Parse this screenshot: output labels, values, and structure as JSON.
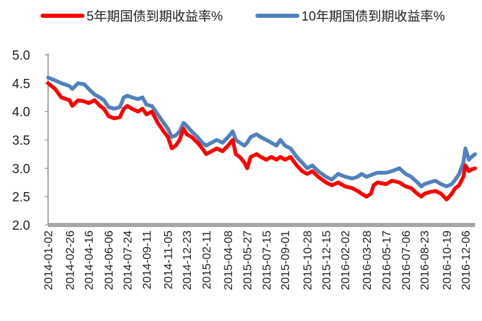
{
  "chart_data": {
    "type": "line",
    "title": "",
    "xlabel": "",
    "ylabel": "",
    "ylim": [
      2.0,
      5.0
    ],
    "yticks": [
      "5.0",
      "4.5",
      "4.0",
      "3.5",
      "3.0",
      "2.5",
      "2.0"
    ],
    "legend_position": "top",
    "grid": false,
    "x_tick_labels": [
      "2014-01-02",
      "2014-02-26",
      "2014-04-16",
      "2014-06-06",
      "2014-07-24",
      "2014-09-11",
      "2014-11-05",
      "2014-12-23",
      "2015-02-11",
      "2015-04-08",
      "2015-05-27",
      "2015-07-15",
      "2015-09-01",
      "2015-10-28",
      "2015-12-15",
      "2016-02-02",
      "2016-03-28",
      "2016-05-17",
      "2016-07-06",
      "2016-08-23",
      "2016-10-19",
      "2016-12-06"
    ],
    "x_range": [
      "2014-01-02",
      "2016-12-31"
    ],
    "series": [
      {
        "name": "5年期国债到期收益率%",
        "color": "#ff0000",
        "points": [
          [
            "2014-01-02",
            4.5
          ],
          [
            "2014-01-20",
            4.4
          ],
          [
            "2014-02-05",
            4.25
          ],
          [
            "2014-02-26",
            4.2
          ],
          [
            "2014-03-05",
            4.1
          ],
          [
            "2014-03-20",
            4.2
          ],
          [
            "2014-04-05",
            4.18
          ],
          [
            "2014-04-16",
            4.15
          ],
          [
            "2014-05-01",
            4.2
          ],
          [
            "2014-05-15",
            4.1
          ],
          [
            "2014-05-25",
            4.05
          ],
          [
            "2014-06-06",
            3.92
          ],
          [
            "2014-06-20",
            3.88
          ],
          [
            "2014-07-05",
            3.9
          ],
          [
            "2014-07-15",
            4.05
          ],
          [
            "2014-07-24",
            4.1
          ],
          [
            "2014-08-05",
            4.05
          ],
          [
            "2014-08-20",
            4.0
          ],
          [
            "2014-09-01",
            4.05
          ],
          [
            "2014-09-11",
            3.95
          ],
          [
            "2014-09-25",
            4.0
          ],
          [
            "2014-10-10",
            3.8
          ],
          [
            "2014-10-25",
            3.65
          ],
          [
            "2014-11-05",
            3.55
          ],
          [
            "2014-11-15",
            3.35
          ],
          [
            "2014-11-25",
            3.4
          ],
          [
            "2014-12-05",
            3.5
          ],
          [
            "2014-12-15",
            3.7
          ],
          [
            "2014-12-23",
            3.6
          ],
          [
            "2015-01-05",
            3.55
          ],
          [
            "2015-01-20",
            3.45
          ],
          [
            "2015-02-01",
            3.35
          ],
          [
            "2015-02-11",
            3.25
          ],
          [
            "2015-02-25",
            3.3
          ],
          [
            "2015-03-10",
            3.35
          ],
          [
            "2015-03-25",
            3.3
          ],
          [
            "2015-04-08",
            3.4
          ],
          [
            "2015-04-20",
            3.5
          ],
          [
            "2015-04-28",
            3.25
          ],
          [
            "2015-05-08",
            3.2
          ],
          [
            "2015-05-20",
            3.1
          ],
          [
            "2015-05-27",
            3.0
          ],
          [
            "2015-06-05",
            3.2
          ],
          [
            "2015-06-20",
            3.25
          ],
          [
            "2015-07-01",
            3.2
          ],
          [
            "2015-07-15",
            3.15
          ],
          [
            "2015-07-28",
            3.2
          ],
          [
            "2015-08-10",
            3.15
          ],
          [
            "2015-08-20",
            3.2
          ],
          [
            "2015-09-01",
            3.15
          ],
          [
            "2015-09-15",
            3.2
          ],
          [
            "2015-10-01",
            3.05
          ],
          [
            "2015-10-15",
            2.95
          ],
          [
            "2015-10-28",
            2.9
          ],
          [
            "2015-11-10",
            2.95
          ],
          [
            "2015-11-25",
            2.85
          ],
          [
            "2015-12-15",
            2.75
          ],
          [
            "2015-12-30",
            2.7
          ],
          [
            "2016-01-15",
            2.75
          ],
          [
            "2016-02-02",
            2.68
          ],
          [
            "2016-02-20",
            2.65
          ],
          [
            "2016-03-05",
            2.6
          ],
          [
            "2016-03-15",
            2.55
          ],
          [
            "2016-03-28",
            2.5
          ],
          [
            "2016-04-08",
            2.55
          ],
          [
            "2016-04-15",
            2.7
          ],
          [
            "2016-04-25",
            2.75
          ],
          [
            "2016-05-17",
            2.72
          ],
          [
            "2016-06-01",
            2.78
          ],
          [
            "2016-06-20",
            2.75
          ],
          [
            "2016-07-06",
            2.68
          ],
          [
            "2016-07-20",
            2.65
          ],
          [
            "2016-08-05",
            2.55
          ],
          [
            "2016-08-15",
            2.5
          ],
          [
            "2016-08-23",
            2.55
          ],
          [
            "2016-09-05",
            2.58
          ],
          [
            "2016-09-20",
            2.6
          ],
          [
            "2016-10-05",
            2.55
          ],
          [
            "2016-10-19",
            2.45
          ],
          [
            "2016-11-01",
            2.55
          ],
          [
            "2016-11-10",
            2.65
          ],
          [
            "2016-11-20",
            2.7
          ],
          [
            "2016-12-01",
            2.85
          ],
          [
            "2016-12-06",
            3.05
          ],
          [
            "2016-12-15",
            2.95
          ],
          [
            "2016-12-22",
            2.98
          ],
          [
            "2016-12-31",
            3.0
          ]
        ]
      },
      {
        "name": "10年期国债到期收益率%",
        "color": "#4f81bd",
        "points": [
          [
            "2014-01-02",
            4.6
          ],
          [
            "2014-01-20",
            4.55
          ],
          [
            "2014-02-05",
            4.5
          ],
          [
            "2014-02-26",
            4.45
          ],
          [
            "2014-03-05",
            4.4
          ],
          [
            "2014-03-20",
            4.5
          ],
          [
            "2014-04-05",
            4.48
          ],
          [
            "2014-04-16",
            4.4
          ],
          [
            "2014-05-01",
            4.3
          ],
          [
            "2014-05-15",
            4.25
          ],
          [
            "2014-05-25",
            4.2
          ],
          [
            "2014-06-06",
            4.08
          ],
          [
            "2014-06-20",
            4.05
          ],
          [
            "2014-07-05",
            4.08
          ],
          [
            "2014-07-15",
            4.25
          ],
          [
            "2014-07-24",
            4.28
          ],
          [
            "2014-08-05",
            4.25
          ],
          [
            "2014-08-20",
            4.22
          ],
          [
            "2014-09-01",
            4.25
          ],
          [
            "2014-09-11",
            4.12
          ],
          [
            "2014-09-25",
            4.1
          ],
          [
            "2014-10-10",
            3.95
          ],
          [
            "2014-10-25",
            3.8
          ],
          [
            "2014-11-05",
            3.7
          ],
          [
            "2014-11-15",
            3.55
          ],
          [
            "2014-11-25",
            3.58
          ],
          [
            "2014-12-05",
            3.65
          ],
          [
            "2014-12-15",
            3.8
          ],
          [
            "2014-12-23",
            3.75
          ],
          [
            "2015-01-05",
            3.65
          ],
          [
            "2015-01-20",
            3.55
          ],
          [
            "2015-02-01",
            3.45
          ],
          [
            "2015-02-11",
            3.4
          ],
          [
            "2015-02-25",
            3.45
          ],
          [
            "2015-03-10",
            3.5
          ],
          [
            "2015-03-25",
            3.45
          ],
          [
            "2015-04-08",
            3.55
          ],
          [
            "2015-04-20",
            3.65
          ],
          [
            "2015-04-28",
            3.5
          ],
          [
            "2015-05-08",
            3.45
          ],
          [
            "2015-05-20",
            3.4
          ],
          [
            "2015-05-27",
            3.45
          ],
          [
            "2015-06-05",
            3.55
          ],
          [
            "2015-06-20",
            3.6
          ],
          [
            "2015-07-01",
            3.55
          ],
          [
            "2015-07-15",
            3.5
          ],
          [
            "2015-07-28",
            3.45
          ],
          [
            "2015-08-10",
            3.4
          ],
          [
            "2015-08-20",
            3.5
          ],
          [
            "2015-09-01",
            3.4
          ],
          [
            "2015-09-15",
            3.35
          ],
          [
            "2015-10-01",
            3.2
          ],
          [
            "2015-10-15",
            3.1
          ],
          [
            "2015-10-28",
            3.0
          ],
          [
            "2015-11-10",
            3.05
          ],
          [
            "2015-11-25",
            2.95
          ],
          [
            "2015-12-15",
            2.85
          ],
          [
            "2015-12-30",
            2.8
          ],
          [
            "2016-01-15",
            2.9
          ],
          [
            "2016-02-02",
            2.85
          ],
          [
            "2016-02-20",
            2.82
          ],
          [
            "2016-03-05",
            2.85
          ],
          [
            "2016-03-15",
            2.9
          ],
          [
            "2016-03-28",
            2.85
          ],
          [
            "2016-04-08",
            2.88
          ],
          [
            "2016-04-15",
            2.9
          ],
          [
            "2016-04-25",
            2.92
          ],
          [
            "2016-05-17",
            2.92
          ],
          [
            "2016-06-01",
            2.95
          ],
          [
            "2016-06-20",
            3.0
          ],
          [
            "2016-07-06",
            2.9
          ],
          [
            "2016-07-20",
            2.85
          ],
          [
            "2016-08-05",
            2.75
          ],
          [
            "2016-08-15",
            2.68
          ],
          [
            "2016-08-23",
            2.72
          ],
          [
            "2016-09-05",
            2.75
          ],
          [
            "2016-09-20",
            2.78
          ],
          [
            "2016-10-05",
            2.72
          ],
          [
            "2016-10-19",
            2.68
          ],
          [
            "2016-11-01",
            2.72
          ],
          [
            "2016-11-10",
            2.8
          ],
          [
            "2016-11-20",
            2.9
          ],
          [
            "2016-12-01",
            3.1
          ],
          [
            "2016-12-06",
            3.35
          ],
          [
            "2016-12-15",
            3.15
          ],
          [
            "2016-12-22",
            3.2
          ],
          [
            "2016-12-31",
            3.25
          ]
        ]
      }
    ]
  }
}
